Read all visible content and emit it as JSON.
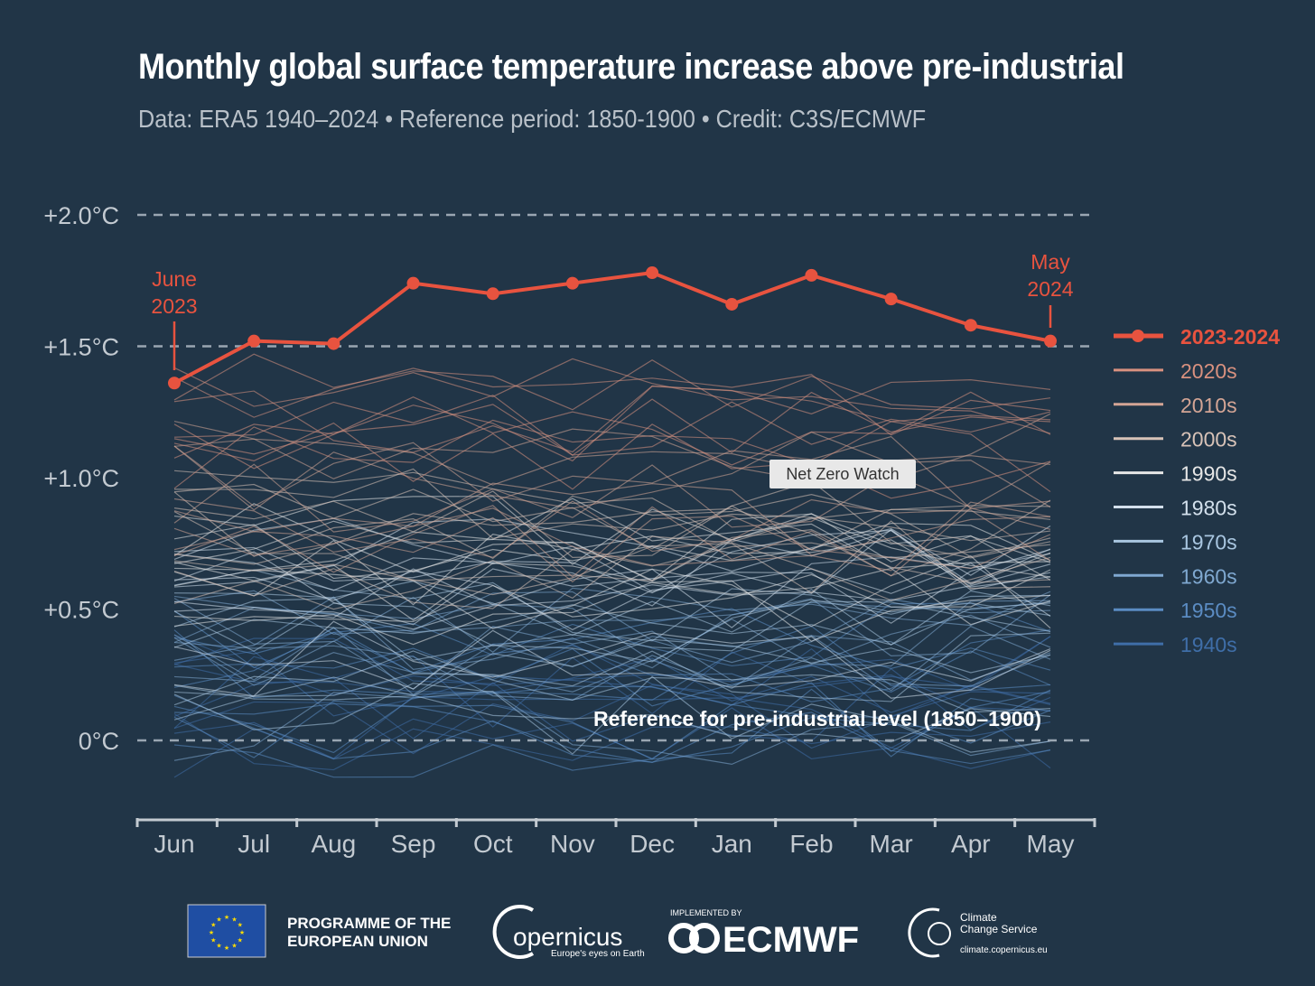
{
  "header": {
    "title": "Monthly global surface temperature increase above pre-industrial",
    "subtitle": "Data: ERA5 1940–2024 • Reference period: 1850-1900 • Credit: C3S/ECMWF"
  },
  "chart_data": {
    "type": "line",
    "categories": [
      "Jun",
      "Jul",
      "Aug",
      "Sep",
      "Oct",
      "Nov",
      "Dec",
      "Jan",
      "Feb",
      "Mar",
      "Apr",
      "May"
    ],
    "ylim": [
      -0.3,
      2.0
    ],
    "yticks": [
      {
        "value": 2.0,
        "label": "+2.0°C"
      },
      {
        "value": 1.5,
        "label": "+1.5°C"
      },
      {
        "value": 1.0,
        "label": "+1.0°C"
      },
      {
        "value": 0.5,
        "label": "+0.5°C"
      },
      {
        "value": 0.0,
        "label": "0°C"
      }
    ],
    "dashed_reference_lines": [
      2.0,
      1.5,
      0.0
    ],
    "grid": false,
    "highlight_series": {
      "name": "2023-2024",
      "color": "#e8533f",
      "values": [
        1.36,
        1.52,
        1.51,
        1.74,
        1.7,
        1.74,
        1.78,
        1.66,
        1.77,
        1.68,
        1.58,
        1.52
      ]
    },
    "start_annotation": [
      "June",
      "2023"
    ],
    "end_annotation": [
      "May",
      "2024"
    ],
    "reference_annotation": "Reference for pre-industrial level (1850–1900)",
    "legend_position": "right",
    "legend": [
      {
        "label": "2023-2024",
        "color": "#e8533f"
      },
      {
        "label": "2020s",
        "color": "#d9917f",
        "approx_level": 1.2
      },
      {
        "label": "2010s",
        "color": "#d4a595",
        "approx_level": 0.95
      },
      {
        "label": "2000s",
        "color": "#d8c3b8",
        "approx_level": 0.8
      },
      {
        "label": "1990s",
        "color": "#e6e6e6",
        "approx_level": 0.6
      },
      {
        "label": "1980s",
        "color": "#d3e0ec",
        "approx_level": 0.5
      },
      {
        "label": "1970s",
        "color": "#a9c6e0",
        "approx_level": 0.3
      },
      {
        "label": "1960s",
        "color": "#7fa8d0",
        "approx_level": 0.25
      },
      {
        "label": "1950s",
        "color": "#5b8cc3",
        "approx_level": 0.2
      },
      {
        "label": "1940s",
        "color": "#3f6ea8",
        "approx_level": 0.2
      }
    ]
  },
  "watermark": "Net Zero Watch",
  "footer": {
    "eu_label": [
      "PROGRAMME OF THE",
      "EUROPEAN UNION"
    ],
    "copernicus": "opernicus",
    "copernicus_tagline": "Europe's eyes on Earth",
    "implemented_by": "IMPLEMENTED BY",
    "ecmwf": "ECMWF",
    "c3s": [
      "Climate",
      "Change Service"
    ],
    "c3s_url": "climate.copernicus.eu"
  }
}
